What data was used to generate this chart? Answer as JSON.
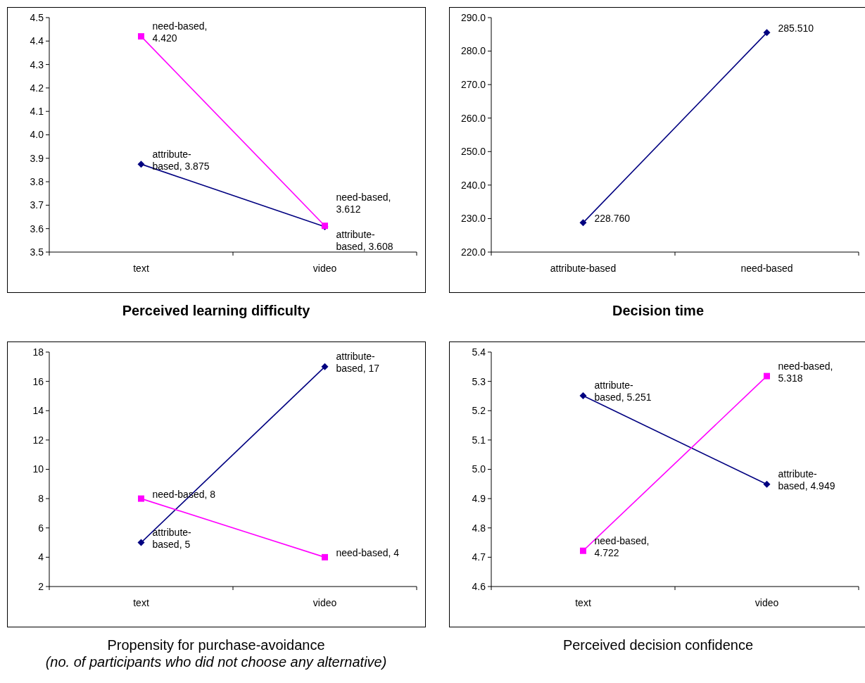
{
  "chart_data": [
    {
      "type": "line",
      "title": "Perceived learning difficulty",
      "categories": [
        "text",
        "video"
      ],
      "ylim": [
        3.5,
        4.5
      ],
      "yticks": [
        3.5,
        3.6,
        3.7,
        3.8,
        3.9,
        {
          "value": 4.0,
          "label": "4.0"
        },
        4.1,
        4.2,
        4.3,
        4.4,
        4.5
      ],
      "series": [
        {
          "color": "#000080",
          "marker": "diamond",
          "values": [
            3.875,
            3.608
          ],
          "value_labels": [
            "attribute-based, 3.875",
            "attribute-based, 3.608"
          ]
        },
        {
          "color": "#ff00ff",
          "marker": "square",
          "values": [
            4.42,
            3.612
          ],
          "value_labels": [
            "need-based, 4.420",
            "need-based, 3.612"
          ]
        }
      ]
    },
    {
      "type": "line",
      "title": "Decision time",
      "categories": [
        "attribute-based",
        "need-based"
      ],
      "ylim": [
        220,
        290
      ],
      "yticks": [
        {
          "value": 220,
          "label": "220.0"
        },
        {
          "value": 230,
          "label": "230.0"
        },
        {
          "value": 240,
          "label": "240.0"
        },
        {
          "value": 250,
          "label": "250.0"
        },
        {
          "value": 260,
          "label": "260.0"
        },
        {
          "value": 270,
          "label": "270.0"
        },
        {
          "value": 280,
          "label": "280.0"
        },
        {
          "value": 290,
          "label": "290.0"
        }
      ],
      "series": [
        {
          "color": "#000080",
          "marker": "diamond",
          "values": [
            228.76,
            285.51
          ],
          "value_labels": [
            "228.760",
            "285.510"
          ]
        }
      ]
    },
    {
      "type": "line",
      "title": "Propensity for purchase-avoidance",
      "subtitle": "(no. of participants who did not choose any alternative)",
      "categories": [
        "text",
        "video"
      ],
      "ylim": [
        2,
        18
      ],
      "yticks": [
        2,
        4,
        6,
        8,
        10,
        12,
        14,
        16,
        18
      ],
      "series": [
        {
          "color": "#000080",
          "marker": "diamond",
          "values": [
            5,
            17
          ],
          "value_labels": [
            "attribute-based, 5",
            "attribute-based, 17"
          ]
        },
        {
          "color": "#ff00ff",
          "marker": "square",
          "values": [
            8,
            4
          ],
          "value_labels": [
            "need-based, 8",
            "need-based, 4"
          ]
        }
      ]
    },
    {
      "type": "line",
      "title": "Perceived decision confidence",
      "categories": [
        "text",
        "video"
      ],
      "ylim": [
        4.6,
        5.4
      ],
      "yticks": [
        4.6,
        4.7,
        4.8,
        4.9,
        {
          "value": 5.0,
          "label": "5.0"
        },
        5.1,
        5.2,
        5.3,
        5.4
      ],
      "series": [
        {
          "color": "#000080",
          "marker": "diamond",
          "values": [
            5.251,
            4.949
          ],
          "value_labels": [
            "attribute-based, 5.251",
            "attribute-based, 4.949"
          ]
        },
        {
          "color": "#ff00ff",
          "marker": "square",
          "values": [
            4.722,
            5.318
          ],
          "value_labels": [
            "need-based, 4.722",
            "need-based, 5.318"
          ]
        }
      ]
    }
  ]
}
